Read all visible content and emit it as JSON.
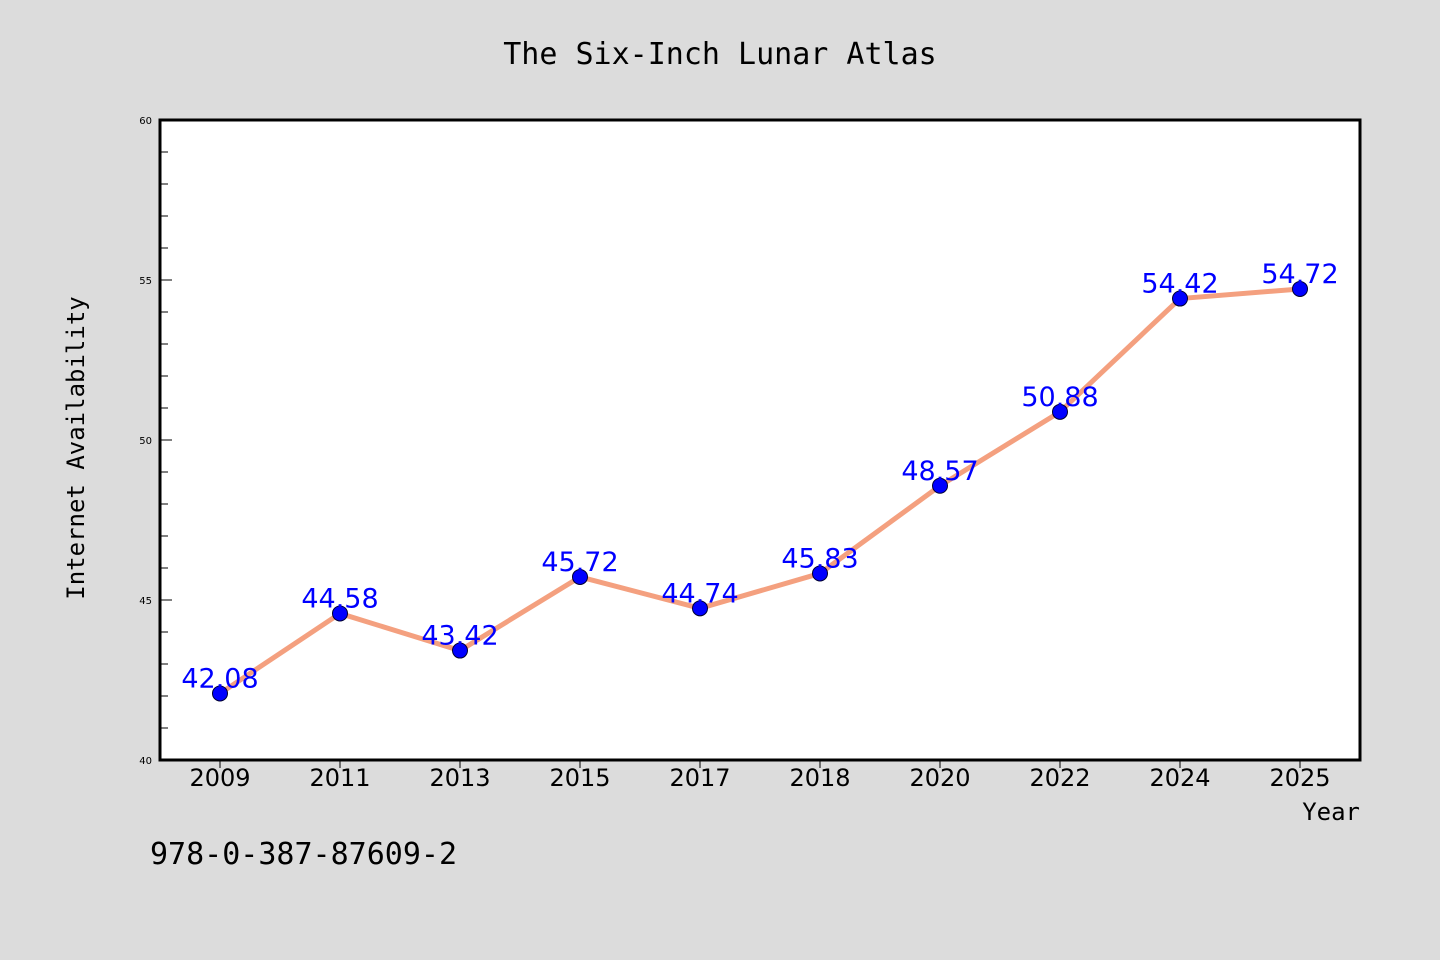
{
  "chart_data": {
    "type": "line",
    "title": "The Six-Inch Lunar Atlas",
    "xlabel": "Year",
    "ylabel": "Internet Availability",
    "categories": [
      "2009",
      "2011",
      "2013",
      "2015",
      "2017",
      "2018",
      "2020",
      "2022",
      "2024",
      "2025"
    ],
    "series": [
      {
        "values": [
          42.08,
          44.58,
          43.42,
          45.72,
          44.74,
          45.83,
          48.57,
          50.88,
          54.42,
          54.72
        ],
        "labels": [
          "42.08",
          "44.58",
          "43.42",
          "45.72",
          "44.74",
          "45.83",
          "48.57",
          "50.88",
          "54.42",
          "54.72"
        ]
      }
    ],
    "ylim": [
      40,
      60
    ],
    "yticks": [
      40,
      45,
      50,
      55,
      60
    ],
    "ytick_labels": [
      "40",
      "45",
      "50",
      "55",
      "60"
    ],
    "grid": false,
    "colors": {
      "line": "#f4a07f",
      "marker": "#0000ff",
      "data_label": "#0000ff",
      "background": "#dcdcdc",
      "plot_background": "#ffffff"
    }
  },
  "annotation": {
    "isbn": "978-0-387-87609-2"
  }
}
